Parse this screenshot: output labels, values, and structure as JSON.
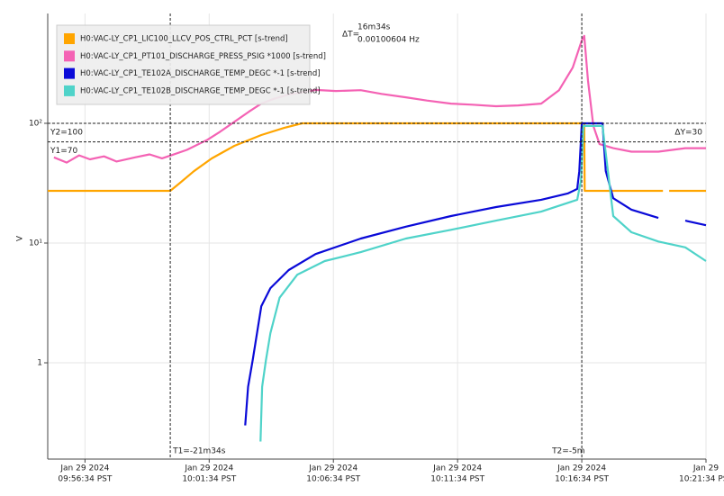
{
  "chart_data": {
    "type": "line",
    "y_label": "V",
    "log_y": true,
    "grid": true,
    "xlim": [
      "09:55:04",
      "10:21:34"
    ],
    "xticks": [
      {
        "value": "09:56:34",
        "label": [
          "Jan 29 2024",
          "09:56:34 PST"
        ]
      },
      {
        "value": "10:01:34",
        "label": [
          "Jan 29 2024",
          "10:01:34 PST"
        ]
      },
      {
        "value": "10:06:34",
        "label": [
          "Jan 29 2024",
          "10:06:34 PST"
        ]
      },
      {
        "value": "10:11:34",
        "label": [
          "Jan 29 2024",
          "10:11:34 PST"
        ]
      },
      {
        "value": "10:16:34",
        "label": [
          "Jan 29 2024",
          "10:16:34 PST"
        ]
      },
      {
        "value": "10:21:34",
        "label": [
          "Jan 29",
          "10:21:34 PST"
        ]
      }
    ],
    "ylim": [
      0.157,
      826
    ],
    "yticks": [
      {
        "value": 100,
        "label": "10²"
      },
      {
        "value": 10,
        "label": "10¹"
      },
      1
    ],
    "vlines": [
      {
        "x": "10:00:00",
        "label": "T1=-21m34s"
      },
      {
        "x": "10:16:34",
        "label": "T2=-5m"
      }
    ],
    "hlines": [
      {
        "y": 100,
        "label": "Y2=100"
      },
      {
        "y": 70,
        "label": "Y1=70"
      }
    ],
    "annotations": [
      "ΔY=30",
      "ΔT=",
      "16m34s",
      "0.00100604 Hz"
    ],
    "series": [
      {
        "name": "H0:VAC-LY_CP1_LIC100_LLCV_POS_CTRL_PCT [s-trend]",
        "color": "#ffa500",
        "x": [
          "09:55:04",
          "10:00:00",
          "10:00:24",
          "10:00:57",
          "10:01:40",
          "10:02:35",
          "10:03:40",
          "10:04:35",
          "10:05:18",
          "10:10:00",
          "10:16:34",
          "10:16:40",
          "10:16:41",
          "10:18:34",
          "10:19:50",
          "10:19:57",
          "10:20:05",
          "10:21:34"
        ],
        "values": [
          27.3,
          27.3,
          31.9,
          39.8,
          50.9,
          64.9,
          79.8,
          91.6,
          100,
          100,
          100,
          100,
          27.3,
          27.3,
          27.3,
          null,
          27.3,
          27.3
        ]
      },
      {
        "name": "H0:VAC-LY_CP1_PT101_DISCHARGE_PRESS_PSIG *1000 [s-trend]",
        "color": "#f462b4",
        "x": [
          "09:55:19",
          "09:55:50",
          "09:56:20",
          "09:56:46",
          "09:57:20",
          "09:57:50",
          "09:58:35",
          "09:59:10",
          "09:59:40",
          "10:00:02",
          "10:00:40",
          "10:01:30",
          "10:02:00",
          "10:02:35",
          "10:03:10",
          "10:03:40",
          "10:04:10",
          "10:04:46",
          "10:05:20",
          "10:05:51",
          "10:06:40",
          "10:07:40",
          "10:08:30",
          "10:09:29",
          "10:10:20",
          "10:11:18",
          "10:12:10",
          "10:13:07",
          "10:14:00",
          "10:14:56",
          "10:15:39",
          "10:16:12",
          "10:16:34",
          "10:16:40",
          "10:16:49",
          "10:17:02",
          "10:17:17",
          "10:17:50",
          "10:18:34",
          "10:19:39",
          "10:20:44",
          "10:21:34"
        ],
        "values": [
          52,
          47,
          54,
          50,
          53,
          48,
          52,
          55,
          51,
          54,
          60,
          73,
          85,
          103,
          125,
          146,
          160,
          174,
          182,
          190,
          186,
          189,
          176,
          165,
          155,
          146,
          143,
          139,
          141,
          146,
          189,
          292,
          493,
          537,
          226,
          95,
          67,
          62,
          58,
          58,
          62,
          62
        ]
      },
      {
        "name": "H0:VAC-LY_CP1_TE102A_DISCHARGE_TEMP_DEGC *-1 [s-trend]",
        "color": "#0a0ad8",
        "x": [
          "10:03:01",
          "10:03:08",
          "10:03:19",
          "10:03:40",
          "10:04:02",
          "10:04:46",
          "10:05:51",
          "10:07:40",
          "10:09:29",
          "10:11:18",
          "10:13:07",
          "10:14:56",
          "10:16:01",
          "10:16:23",
          "10:16:28",
          "10:16:34",
          "10:17:24",
          "10:17:32",
          "10:17:50",
          "10:18:34",
          "10:19:39",
          "10:20:15",
          "10:20:44",
          "10:21:34"
        ],
        "values": [
          0.3,
          0.63,
          1.05,
          2.97,
          4.2,
          5.95,
          8.1,
          10.9,
          13.7,
          16.8,
          20,
          23,
          26,
          28.3,
          39.8,
          100,
          100,
          40,
          23.7,
          19,
          16.2,
          null,
          15.4,
          14.1
        ]
      },
      {
        "name": "H0:VAC-LY_CP1_TE102B_DISCHARGE_TEMP_DEGC *-1 [s-trend]",
        "color": "#4fd3c9",
        "x": [
          "10:03:38",
          "10:03:42",
          "10:03:51",
          "10:04:02",
          "10:04:24",
          "10:05:07",
          "10:06:13",
          "10:07:40",
          "10:09:29",
          "10:11:18",
          "10:13:07",
          "10:14:56",
          "10:16:23",
          "10:16:32",
          "10:16:38",
          "10:17:24",
          "10:17:32",
          "10:17:50",
          "10:18:34",
          "10:19:39",
          "10:20:44",
          "10:21:34"
        ],
        "values": [
          0.22,
          0.63,
          1.05,
          1.77,
          3.5,
          5.45,
          7.07,
          8.4,
          10.9,
          12.9,
          15.4,
          18.3,
          23,
          33.5,
          95,
          95,
          56.5,
          16.8,
          12.3,
          10.3,
          9.2,
          7.07
        ]
      }
    ]
  }
}
